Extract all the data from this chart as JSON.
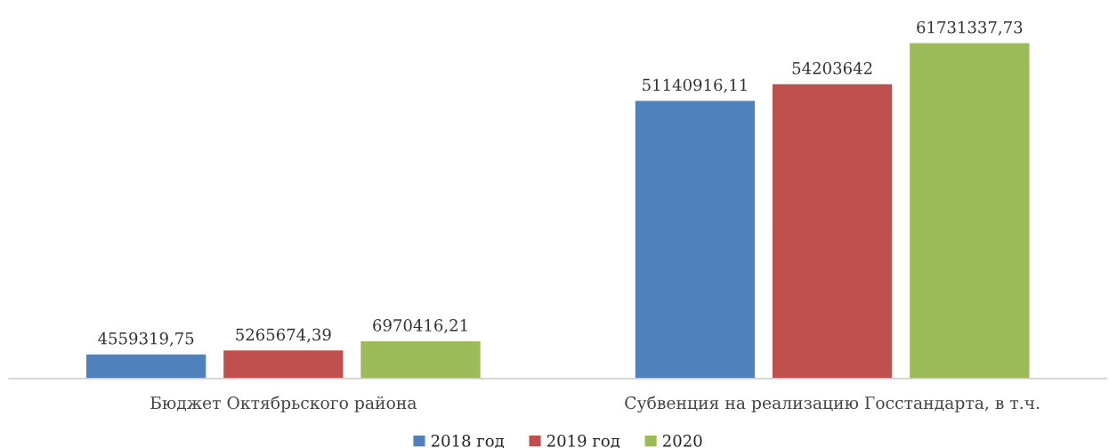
{
  "chart_data": {
    "type": "bar",
    "categories": [
      "Бюджет Октябрьского района",
      "Субвенция на реализацию Госстандарта, в т.ч."
    ],
    "series": [
      {
        "name": "2018 год",
        "color": "#4f81bd",
        "values": [
          4559319.75,
          51140916.11
        ],
        "value_labels": [
          "4559319,75",
          "51140916,11"
        ]
      },
      {
        "name": "2019 год",
        "color": "#c0504d",
        "values": [
          5265674.39,
          54203642
        ],
        "value_labels": [
          "5265674,39",
          "54203642"
        ]
      },
      {
        "name": "2020",
        "color": "#9bbb59",
        "values": [
          6970416.21,
          61731337.73
        ],
        "value_labels": [
          "6970416,21",
          "61731337,73"
        ]
      }
    ],
    "legend": "bottom",
    "grid": false
  }
}
